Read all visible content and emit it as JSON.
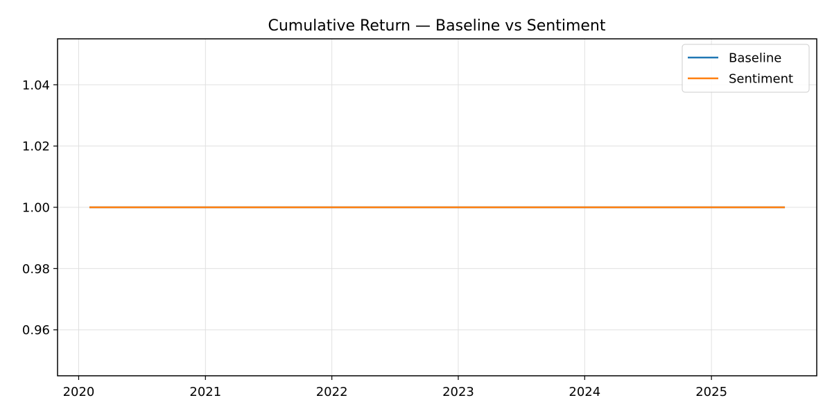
{
  "chart_data": {
    "type": "line",
    "title": "Cumulative Return — Baseline vs Sentiment",
    "xlabel": "",
    "ylabel": "",
    "x_axis_type": "date",
    "xlim": [
      "2019-11-01",
      "2025-11-01"
    ],
    "ylim": [
      0.945,
      1.055
    ],
    "x_ticks": [
      "2020",
      "2021",
      "2022",
      "2023",
      "2024",
      "2025"
    ],
    "y_ticks": [
      "0.96",
      "0.98",
      "1.00",
      "1.02",
      "1.04"
    ],
    "grid": true,
    "legend_position": "top-right",
    "series": [
      {
        "name": "Baseline",
        "color": "#1f77b4",
        "x": [
          "2020-02-01",
          "2025-08-01"
        ],
        "y": [
          1.0,
          1.0
        ]
      },
      {
        "name": "Sentiment",
        "color": "#ff7f0e",
        "x": [
          "2020-02-01",
          "2025-08-01"
        ],
        "y": [
          1.0,
          1.0
        ]
      }
    ]
  }
}
